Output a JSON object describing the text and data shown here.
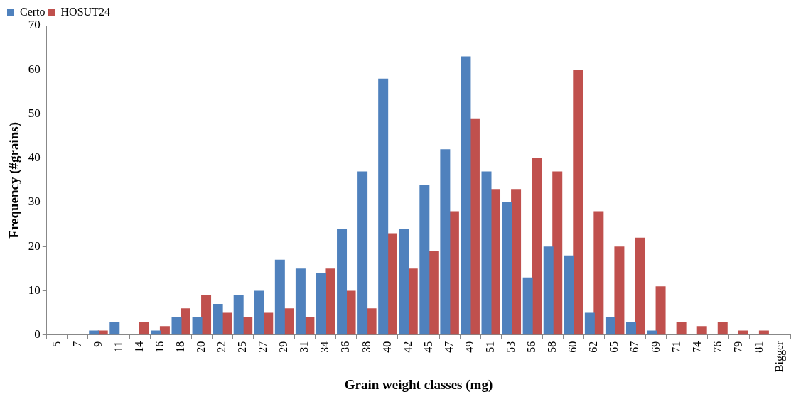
{
  "chart_data": {
    "type": "bar",
    "xlabel": "Grain weight classes (mg)",
    "ylabel": "Frequency (#grains)",
    "categories": [
      "5",
      "7",
      "9",
      "11",
      "14",
      "16",
      "18",
      "20",
      "22",
      "25",
      "27",
      "29",
      "31",
      "34",
      "36",
      "38",
      "40",
      "42",
      "45",
      "47",
      "49",
      "51",
      "53",
      "56",
      "58",
      "60",
      "62",
      "65",
      "67",
      "69",
      "71",
      "74",
      "76",
      "79",
      "81",
      "Bigger"
    ],
    "series": [
      {
        "name": "Certo",
        "color": "#4f81bd",
        "values": [
          0,
          0,
          1,
          3,
          0,
          1,
          4,
          4,
          7,
          9,
          10,
          17,
          15,
          14,
          24,
          37,
          58,
          24,
          34,
          42,
          63,
          37,
          30,
          13,
          20,
          18,
          5,
          4,
          3,
          1,
          0,
          0,
          0,
          0,
          0,
          0
        ]
      },
      {
        "name": "HOSUT24",
        "color": "#c0504d",
        "values": [
          0,
          0,
          1,
          0,
          3,
          2,
          6,
          9,
          5,
          4,
          5,
          6,
          4,
          15,
          10,
          6,
          23,
          15,
          19,
          28,
          49,
          33,
          33,
          40,
          37,
          60,
          28,
          20,
          22,
          11,
          3,
          2,
          3,
          1,
          1,
          0
        ]
      }
    ],
    "ylim": [
      0,
      70
    ],
    "yticks": [
      0,
      10,
      20,
      30,
      40,
      50,
      60,
      70
    ],
    "grid": false,
    "legend": "top left"
  }
}
